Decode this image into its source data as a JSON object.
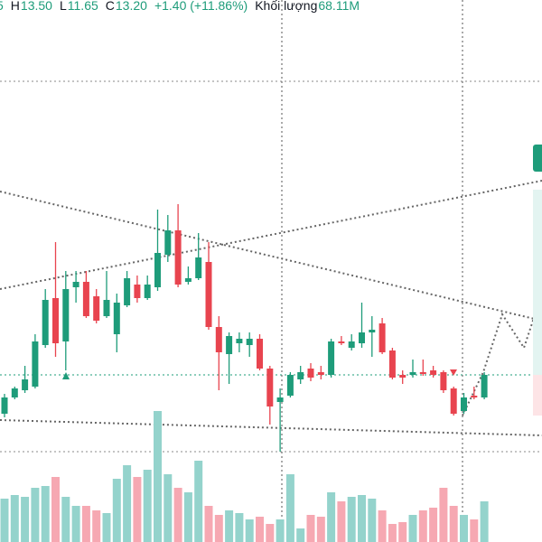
{
  "header": {
    "open_fragment": "5",
    "high_label": "H",
    "high": "13.50",
    "low_label": "L",
    "low": "11.65",
    "close_label": "C",
    "close": "13.20",
    "change": "+1.40 (+11.86%)",
    "volume_label": "Khối lượng",
    "volume": "68.11M"
  },
  "chart_data": {
    "type": "candlestick",
    "up_color": "#1e9c7a",
    "down_color": "#e8444f",
    "volume_up_color": "#94d3cc",
    "volume_down_color": "#f6a8b2",
    "ylim": [
      0,
      30
    ],
    "volume_lim": [
      0,
      600
    ],
    "open": [
      7.1,
      8.0,
      8.4,
      8.6,
      10.9,
      13.5,
      11.1,
      14.1,
      14.4,
      13.6,
      12.5,
      11.5,
      13.1,
      14.25,
      13.5,
      14.1,
      15.9,
      17.25,
      14.4,
      14.6,
      15.5,
      11.9,
      10.4,
      11.0,
      10.9,
      11.25,
      9.6,
      7.75,
      8.1,
      9.0,
      9.6,
      9.4,
      9.25,
      11.1,
      10.75,
      11.0,
      11.6,
      12.1,
      10.6,
      9.25,
      9.25,
      9.4,
      9.5,
      9.4,
      8.5,
      7.25,
      8.1,
      8.0
    ],
    "high": [
      8.2,
      8.6,
      9.75,
      11.5,
      14.0,
      16.6,
      15.0,
      15.0,
      15.0,
      14.0,
      15.0,
      13.75,
      15.0,
      14.75,
      14.75,
      18.4,
      18.1,
      18.7,
      15.25,
      17.1,
      16.6,
      12.5,
      11.6,
      11.6,
      11.6,
      11.5,
      9.75,
      8.5,
      9.4,
      9.75,
      9.9,
      9.75,
      11.25,
      11.4,
      11.5,
      13.25,
      12.5,
      12.4,
      10.75,
      9.5,
      10.1,
      10.1,
      9.75,
      9.5,
      8.6,
      8.25,
      8.6,
      9.4
    ],
    "low": [
      6.9,
      7.9,
      8.25,
      8.5,
      10.75,
      10.25,
      9.5,
      13.25,
      12.4,
      12.1,
      12.4,
      10.5,
      13.0,
      13.25,
      13.4,
      13.9,
      15.5,
      14.1,
      14.25,
      14.5,
      11.75,
      8.4,
      8.75,
      10.5,
      10.25,
      9.5,
      6.5,
      5.0,
      8.0,
      8.75,
      8.9,
      9.0,
      9.1,
      10.9,
      10.6,
      10.75,
      10.25,
      10.4,
      9.0,
      8.75,
      9.1,
      9.2,
      9.1,
      8.25,
      7.0,
      7.1,
      7.9,
      7.9
    ],
    "close": [
      8.0,
      8.5,
      9.0,
      11.1,
      13.4,
      11.0,
      14.0,
      14.4,
      12.5,
      12.25,
      13.4,
      13.25,
      14.6,
      13.5,
      14.25,
      16.0,
      17.25,
      14.25,
      14.6,
      15.75,
      11.9,
      10.5,
      11.4,
      11.25,
      11.25,
      9.6,
      7.5,
      8.0,
      9.25,
      9.4,
      9.1,
      9.25,
      11.1,
      11.0,
      11.1,
      11.6,
      11.75,
      10.5,
      9.1,
      9.1,
      9.4,
      9.3,
      9.25,
      8.4,
      7.1,
      8.0,
      8.0,
      9.25
    ],
    "volume": [
      48,
      52,
      50,
      60,
      62,
      72,
      50,
      40,
      40,
      35,
      32,
      70,
      85,
      72,
      80,
      145,
      75,
      60,
      55,
      90,
      40,
      30,
      35,
      32,
      25,
      28,
      20,
      25,
      75,
      15,
      30,
      28,
      55,
      45,
      50,
      52,
      48,
      35,
      20,
      22,
      30,
      35,
      38,
      60,
      40,
      30,
      25,
      45
    ]
  }
}
